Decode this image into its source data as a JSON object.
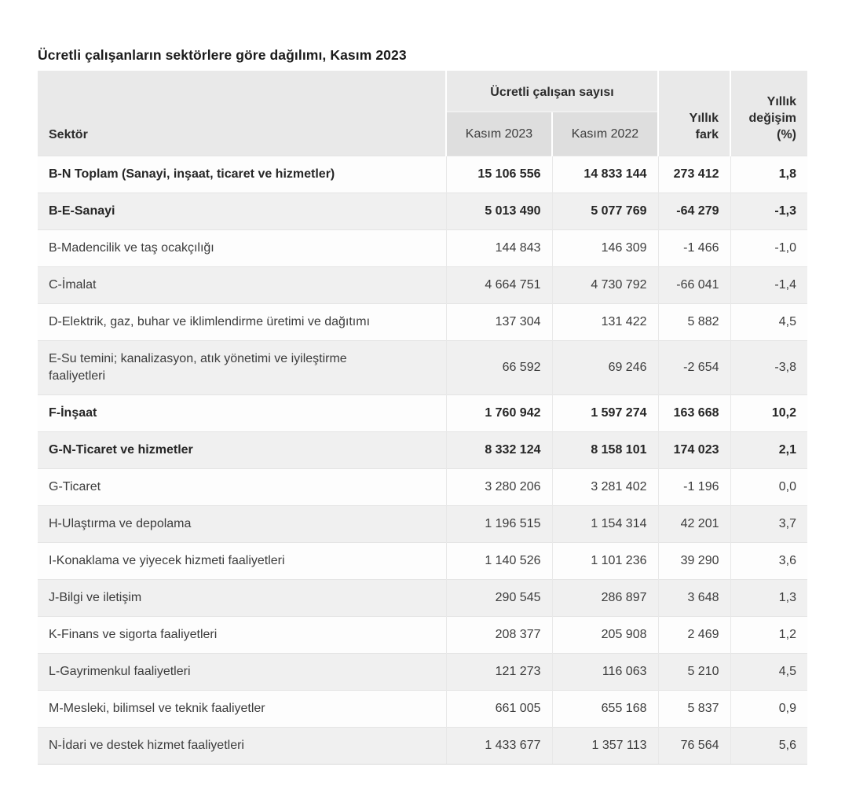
{
  "page": {
    "title": "Ücretli çalışanların sektörlere göre dağılımı, Kasım 2023"
  },
  "colors": {
    "header_bg": "#e9e9e9",
    "subheader_bg": "#dedede",
    "zebra_row_bg": "#f0f0f0",
    "white_row_bg": "#fdfdfd",
    "text": "#3c3c3c",
    "bold_text": "#262626"
  },
  "table": {
    "headers": {
      "sector": "Sektör",
      "group": "Ücretli çalışan sayısı",
      "nov2023": "Kasım 2023",
      "nov2022": "Kasım 2022",
      "diff": "Yıllık fark",
      "change": "Yıllık değişim (%)"
    },
    "rows": [
      {
        "sector": "B-N Toplam (Sanayi, inşaat, ticaret ve hizmetler)",
        "nov2023": "15 106 556",
        "nov2022": "14 833 144",
        "diff": "273 412",
        "pct": "1,8",
        "bold": true
      },
      {
        "sector": "B-E-Sanayi",
        "nov2023": "5 013 490",
        "nov2022": "5 077 769",
        "diff": "-64 279",
        "pct": "-1,3",
        "bold": true
      },
      {
        "sector": "B-Madencilik ve taş ocakçılığı",
        "nov2023": "144 843",
        "nov2022": "146 309",
        "diff": "-1 466",
        "pct": "-1,0",
        "bold": false
      },
      {
        "sector": "C-İmalat",
        "nov2023": "4 664 751",
        "nov2022": "4 730 792",
        "diff": "-66 041",
        "pct": "-1,4",
        "bold": false
      },
      {
        "sector": "D-Elektrik, gaz, buhar ve iklimlendirme üretimi ve dağıtımı",
        "nov2023": "137 304",
        "nov2022": "131 422",
        "diff": "5 882",
        "pct": "4,5",
        "bold": false
      },
      {
        "sector": "E-Su temini; kanalizasyon, atık yönetimi ve iyileştirme faaliyetleri",
        "nov2023": "66 592",
        "nov2022": "69 246",
        "diff": "-2 654",
        "pct": "-3,8",
        "bold": false
      },
      {
        "sector": "F-İnşaat",
        "nov2023": "1 760 942",
        "nov2022": "1 597 274",
        "diff": "163 668",
        "pct": "10,2",
        "bold": true
      },
      {
        "sector": "G-N-Ticaret ve hizmetler",
        "nov2023": "8 332 124",
        "nov2022": "8 158 101",
        "diff": "174 023",
        "pct": "2,1",
        "bold": true
      },
      {
        "sector": "G-Ticaret",
        "nov2023": "3 280 206",
        "nov2022": "3 281 402",
        "diff": "-1 196",
        "pct": "0,0",
        "bold": false
      },
      {
        "sector": "H-Ulaştırma ve depolama",
        "nov2023": "1 196 515",
        "nov2022": "1 154 314",
        "diff": "42 201",
        "pct": "3,7",
        "bold": false
      },
      {
        "sector": "I-Konaklama ve yiyecek hizmeti faaliyetleri",
        "nov2023": "1 140 526",
        "nov2022": "1 101 236",
        "diff": "39 290",
        "pct": "3,6",
        "bold": false
      },
      {
        "sector": "J-Bilgi ve iletişim",
        "nov2023": "290 545",
        "nov2022": "286 897",
        "diff": "3 648",
        "pct": "1,3",
        "bold": false
      },
      {
        "sector": "K-Finans ve sigorta faaliyetleri",
        "nov2023": "208 377",
        "nov2022": "205 908",
        "diff": "2 469",
        "pct": "1,2",
        "bold": false
      },
      {
        "sector": "L-Gayrimenkul faaliyetleri",
        "nov2023": "121 273",
        "nov2022": "116 063",
        "diff": "5 210",
        "pct": "4,5",
        "bold": false
      },
      {
        "sector": "M-Mesleki, bilimsel ve teknik faaliyetler",
        "nov2023": "661 005",
        "nov2022": "655 168",
        "diff": "5 837",
        "pct": "0,9",
        "bold": false
      },
      {
        "sector": "N-İdari ve destek hizmet faaliyetleri",
        "nov2023": "1 433 677",
        "nov2022": "1 357 113",
        "diff": "76 564",
        "pct": "5,6",
        "bold": false
      }
    ]
  },
  "chart_data": {
    "type": "table",
    "title": "Ücretli çalışanların sektörlere göre dağılımı, Kasım 2023",
    "columns": [
      "Sektör",
      "Kasım 2023",
      "Kasım 2022",
      "Yıllık fark",
      "Yıllık değişim (%)"
    ],
    "rows": [
      [
        "B-N Toplam (Sanayi, inşaat, ticaret ve hizmetler)",
        15106556,
        14833144,
        273412,
        1.8
      ],
      [
        "B-E-Sanayi",
        5013490,
        5077769,
        -64279,
        -1.3
      ],
      [
        "B-Madencilik ve taş ocakçılığı",
        144843,
        146309,
        -1466,
        -1.0
      ],
      [
        "C-İmalat",
        4664751,
        4730792,
        -66041,
        -1.4
      ],
      [
        "D-Elektrik, gaz, buhar ve iklimlendirme üretimi ve dağıtımı",
        137304,
        131422,
        5882,
        4.5
      ],
      [
        "E-Su temini; kanalizasyon, atık yönetimi ve iyileştirme faaliyetleri",
        66592,
        69246,
        -2654,
        -3.8
      ],
      [
        "F-İnşaat",
        1760942,
        1597274,
        163668,
        10.2
      ],
      [
        "G-N-Ticaret ve hizmetler",
        8332124,
        8158101,
        174023,
        2.1
      ],
      [
        "G-Ticaret",
        3280206,
        3281402,
        -1196,
        0.0
      ],
      [
        "H-Ulaştırma ve depolama",
        1196515,
        1154314,
        42201,
        3.7
      ],
      [
        "I-Konaklama ve yiyecek hizmeti faaliyetleri",
        1140526,
        1101236,
        39290,
        3.6
      ],
      [
        "J-Bilgi ve iletişim",
        290545,
        286897,
        3648,
        1.3
      ],
      [
        "K-Finans ve sigorta faaliyetleri",
        208377,
        205908,
        2469,
        1.2
      ],
      [
        "L-Gayrimenkul faaliyetleri",
        121273,
        116063,
        5210,
        4.5
      ],
      [
        "M-Mesleki, bilimsel ve teknik faaliyetler",
        661005,
        655168,
        5837,
        0.9
      ],
      [
        "N-İdari ve destek hizmet faaliyetleri",
        1433677,
        1357113,
        76564,
        5.6
      ]
    ]
  }
}
